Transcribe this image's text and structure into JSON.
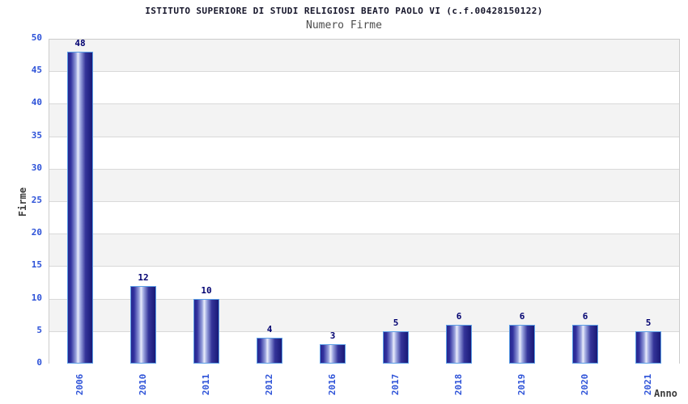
{
  "header": {
    "title": "ISTITUTO SUPERIORE DI STUDI RELIGIOSI BEATO PAOLO VI (c.f.00428150122)",
    "subtitle": "Numero Firme"
  },
  "chart_data": {
    "type": "bar",
    "title": "ISTITUTO SUPERIORE DI STUDI RELIGIOSI BEATO PAOLO VI (c.f.00428150122)",
    "subtitle": "Numero Firme",
    "categories": [
      "2006",
      "2010",
      "2011",
      "2012",
      "2016",
      "2017",
      "2018",
      "2019",
      "2020",
      "2021"
    ],
    "values": [
      48,
      12,
      10,
      4,
      3,
      5,
      6,
      6,
      6,
      5
    ],
    "xlabel": "Anno",
    "ylabel": "Firme",
    "ylim": [
      0,
      50
    ],
    "ytick_step": 5,
    "grid": true,
    "bar_value_labels": true,
    "legend": "none",
    "colors": {
      "tick_label": "#2d52d8",
      "value_label": "#000070",
      "bar_edge": "#5b9ee6",
      "bar_dark": "#1f1f8a",
      "bar_highlight": "#e9ecfb",
      "band_gray": "#f3f3f3",
      "band_white": "#ffffff",
      "grid_line": "#d9d9d9",
      "plot_border": "#cccccc",
      "title_color": "#15152a",
      "subtitle_color": "#4d4d4d",
      "axis_title_color": "#3c3c3c"
    }
  }
}
